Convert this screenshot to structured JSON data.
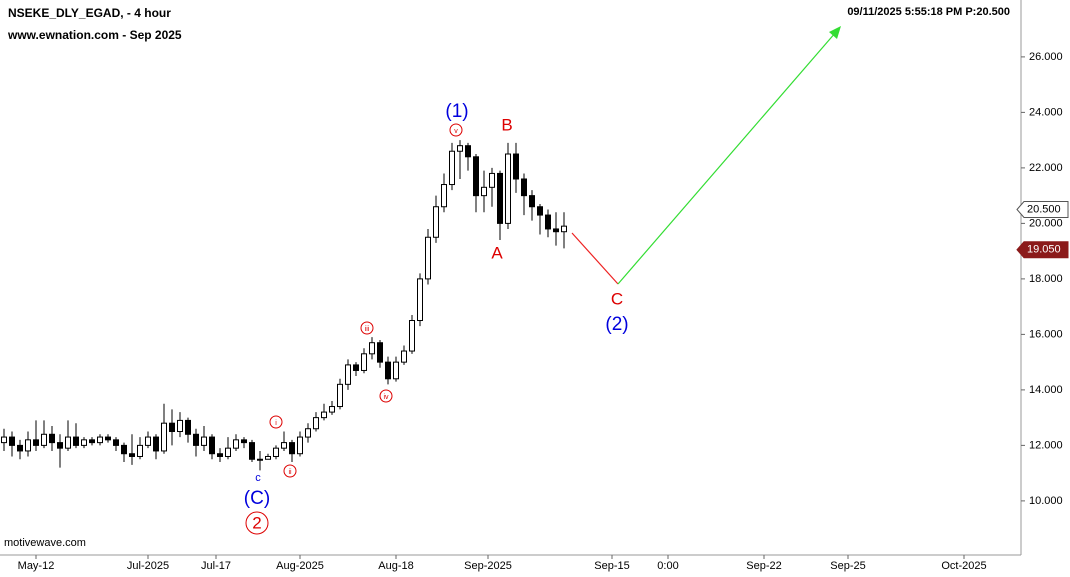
{
  "chart_data": {
    "type": "candlestick",
    "title": "NSEKE_DLY_EGAD, - 4 hour",
    "subtitle": "www.ewnation.com  - Sep 2025",
    "info": "09/11/2025 5:55:18 PM  P:20.500",
    "source": "motivewave.com",
    "color": "#000000",
    "open": [
      12.1,
      12.3,
      12.0,
      11.8,
      12.2,
      12.0,
      12.4,
      12.1,
      11.9,
      12.3,
      12.0,
      12.2,
      12.1,
      12.3,
      12.2,
      12.0,
      11.7,
      11.6,
      12.0,
      12.3,
      11.8,
      12.8,
      12.5,
      12.9,
      12.4,
      12.0,
      12.3,
      11.7,
      11.6,
      11.9,
      12.2,
      12.1,
      11.5,
      11.5,
      11.6,
      11.9,
      12.1,
      11.7,
      12.3,
      12.6,
      13.0,
      13.2,
      13.4,
      14.2,
      14.9,
      14.7,
      15.3,
      15.7,
      15.0,
      14.4,
      15.0,
      15.4,
      16.5,
      18.0,
      19.5,
      20.6,
      21.4,
      22.6,
      22.8,
      22.4,
      21.0,
      21.3,
      21.8,
      20.0,
      22.5,
      21.6,
      21.0,
      20.6,
      20.3,
      19.8,
      19.7
    ],
    "high": [
      12.6,
      12.5,
      12.2,
      12.5,
      12.9,
      12.9,
      12.7,
      12.4,
      12.9,
      12.8,
      12.3,
      12.3,
      12.4,
      12.4,
      12.3,
      12.1,
      12.4,
      12.3,
      12.5,
      12.4,
      13.5,
      13.3,
      13.2,
      13.0,
      12.6,
      12.7,
      12.4,
      11.9,
      12.3,
      12.4,
      12.3,
      12.2,
      11.8,
      11.7,
      12.0,
      12.5,
      12.2,
      12.5,
      12.8,
      13.2,
      13.5,
      13.6,
      14.4,
      15.1,
      15.0,
      15.5,
      15.9,
      15.8,
      15.2,
      15.2,
      15.6,
      16.7,
      18.2,
      19.8,
      21.0,
      21.8,
      22.9,
      23.0,
      22.9,
      22.5,
      21.9,
      22.0,
      21.9,
      22.9,
      22.9,
      21.8,
      21.2,
      20.7,
      20.5,
      20.4,
      20.4
    ],
    "low": [
      11.8,
      11.6,
      11.5,
      11.6,
      11.8,
      11.9,
      11.8,
      11.2,
      11.8,
      11.9,
      11.9,
      12.0,
      12.0,
      12.1,
      11.8,
      11.4,
      11.3,
      11.5,
      11.9,
      11.5,
      11.7,
      12.0,
      12.3,
      12.1,
      11.6,
      11.8,
      11.5,
      11.4,
      11.5,
      11.8,
      11.9,
      11.4,
      11.1,
      11.5,
      11.5,
      11.8,
      11.4,
      11.6,
      12.1,
      12.5,
      12.9,
      13.1,
      13.3,
      14.0,
      14.5,
      14.6,
      15.1,
      14.8,
      14.2,
      14.3,
      14.9,
      15.3,
      16.3,
      17.8,
      19.3,
      20.4,
      21.2,
      21.6,
      21.9,
      20.4,
      20.4,
      20.6,
      19.4,
      19.8,
      21.1,
      20.3,
      20.1,
      19.6,
      19.5,
      19.2,
      19.1
    ],
    "close": [
      12.3,
      12.0,
      11.8,
      12.2,
      12.0,
      12.4,
      12.1,
      11.9,
      12.3,
      12.0,
      12.2,
      12.1,
      12.3,
      12.2,
      12.0,
      11.7,
      11.6,
      12.0,
      12.3,
      11.8,
      12.8,
      12.5,
      12.9,
      12.4,
      12.0,
      12.3,
      11.7,
      11.6,
      11.9,
      12.2,
      12.1,
      11.5,
      11.5,
      11.6,
      11.9,
      12.1,
      11.7,
      12.3,
      12.6,
      13.0,
      13.2,
      13.4,
      14.2,
      14.9,
      14.7,
      15.3,
      15.7,
      15.0,
      14.4,
      15.0,
      15.4,
      16.5,
      18.0,
      19.5,
      20.6,
      21.4,
      22.6,
      22.8,
      22.4,
      21.0,
      21.3,
      21.8,
      20.0,
      22.5,
      21.6,
      21.0,
      20.6,
      20.3,
      19.8,
      19.7,
      19.9
    ],
    "xlim": [
      -0.5,
      127
    ],
    "xticks": [
      {
        "value": 4,
        "label": "May-12"
      },
      {
        "value": 18,
        "label": "Jul-2025"
      },
      {
        "value": 26.5,
        "label": "Jul-17"
      },
      {
        "value": 37,
        "label": "Aug-2025"
      },
      {
        "value": 49,
        "label": "Aug-18"
      },
      {
        "value": 60.5,
        "label": "Sep-2025"
      },
      {
        "value": 76,
        "label": "Sep-15"
      },
      {
        "value": 83,
        "label": "0:00"
      },
      {
        "value": 95,
        "label": "Sep-22"
      },
      {
        "value": 105.5,
        "label": "Sep-25"
      },
      {
        "value": 120,
        "label": "Oct-2025"
      }
    ],
    "ylim": [
      8.05,
      28.05
    ],
    "yticks": [
      {
        "value": 10,
        "label": "10.000"
      },
      {
        "value": 12,
        "label": "12.000"
      },
      {
        "value": 14,
        "label": "14.000"
      },
      {
        "value": 16,
        "label": "16.000"
      },
      {
        "value": 18,
        "label": "18.000"
      },
      {
        "value": 20,
        "label": "20.000"
      },
      {
        "value": 22,
        "label": "22.000"
      },
      {
        "value": 24,
        "label": "24.000"
      },
      {
        "value": 26,
        "label": "26.000"
      }
    ],
    "price_markers": [
      {
        "value": 20.5,
        "label": "20.500",
        "color": "#ffffff"
      },
      {
        "value": 19.05,
        "label": "19.050",
        "color": "#8b1a1a"
      }
    ],
    "grid": false,
    "annotations": [
      {
        "text": "(1)",
        "color": "#0000dd"
      },
      {
        "text": "v",
        "color": "#dd0000",
        "circled": true
      },
      {
        "text": "B",
        "color": "#dd0000"
      },
      {
        "text": "A",
        "color": "#dd0000"
      },
      {
        "text": "C",
        "color": "#dd0000"
      },
      {
        "text": "(2)",
        "color": "#0000dd"
      },
      {
        "text": "iii",
        "color": "#dd0000",
        "circled": true
      },
      {
        "text": "iv",
        "color": "#dd0000",
        "circled": true
      },
      {
        "text": "i",
        "color": "#dd0000",
        "circled": true
      },
      {
        "text": "ii",
        "color": "#dd0000",
        "circled": true
      },
      {
        "text": "c",
        "color": "#0000dd"
      },
      {
        "text": "(C)",
        "color": "#0000dd"
      },
      {
        "text": "2",
        "color": "#dd0000",
        "circled": true
      }
    ]
  }
}
